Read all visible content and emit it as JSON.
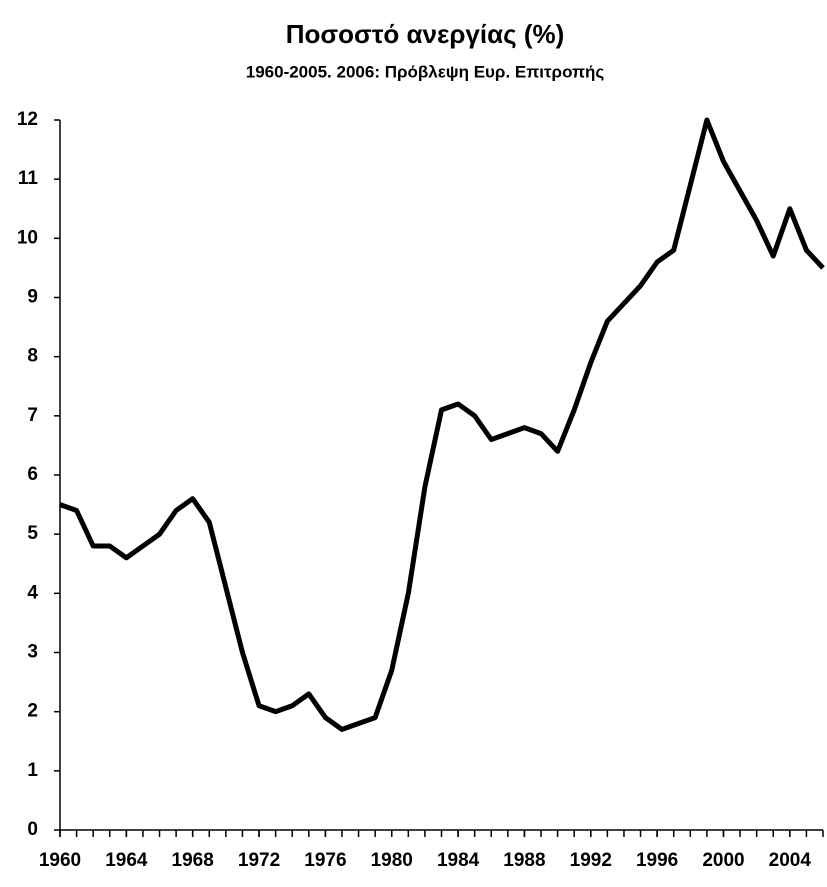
{
  "chart_data": {
    "type": "line",
    "title": "Ποσοστό ανεργίας (%)",
    "subtitle": "1960-2005. 2006: Πρόβλεψη Ευρ. Επιτροπής",
    "x": [
      1960,
      1961,
      1962,
      1963,
      1964,
      1965,
      1966,
      1967,
      1968,
      1969,
      1970,
      1971,
      1972,
      1973,
      1974,
      1975,
      1976,
      1977,
      1978,
      1979,
      1980,
      1981,
      1982,
      1983,
      1984,
      1985,
      1986,
      1987,
      1988,
      1989,
      1990,
      1991,
      1992,
      1993,
      1994,
      1995,
      1996,
      1997,
      1998,
      1999,
      2000,
      2001,
      2002,
      2003,
      2004,
      2005,
      2006
    ],
    "series": [
      {
        "color": "#000000",
        "values": [
          5.5,
          5.4,
          4.8,
          4.8,
          4.6,
          4.8,
          5.0,
          5.4,
          5.6,
          5.2,
          4.1,
          3.0,
          2.1,
          2.0,
          2.1,
          2.3,
          1.9,
          1.7,
          1.8,
          1.9,
          2.7,
          4.0,
          5.8,
          7.1,
          7.2,
          7.0,
          6.6,
          6.7,
          6.8,
          6.7,
          6.4,
          7.1,
          7.9,
          8.6,
          8.9,
          9.2,
          9.6,
          9.8,
          10.9,
          12.0,
          11.3,
          10.8,
          10.3,
          9.7,
          10.5,
          9.8,
          9.5
        ]
      }
    ],
    "xlim": [
      1960,
      2006
    ],
    "xticks": [
      1960,
      1964,
      1968,
      1972,
      1976,
      1980,
      1984,
      1988,
      1992,
      1996,
      2000,
      2004
    ],
    "ylim": [
      0,
      12
    ],
    "yticks": [
      0,
      1,
      2,
      3,
      4,
      5,
      6,
      7,
      8,
      9,
      10,
      11,
      12
    ],
    "grid": false
  }
}
